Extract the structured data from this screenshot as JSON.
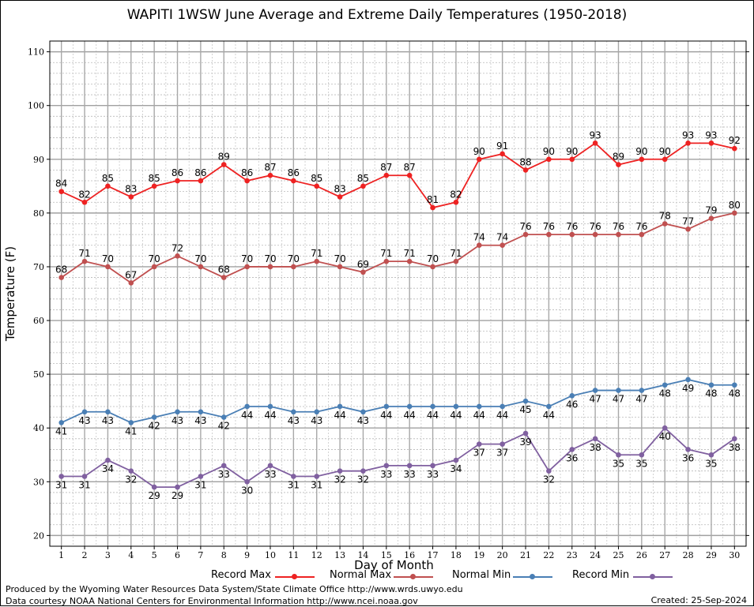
{
  "chart_data": {
    "type": "line",
    "title": "WAPITI 1WSW June Average and Extreme Daily Temperatures (1950-2018)",
    "xlabel": "Day of Month",
    "ylabel": "Temperature (F)",
    "x": [
      1,
      2,
      3,
      4,
      5,
      6,
      7,
      8,
      9,
      10,
      11,
      12,
      13,
      14,
      15,
      16,
      17,
      18,
      19,
      20,
      21,
      22,
      23,
      24,
      25,
      26,
      27,
      28,
      29,
      30
    ],
    "xlim": [
      0.5,
      30.5
    ],
    "ylim": [
      18,
      112
    ],
    "yticks": [
      20,
      30,
      40,
      50,
      60,
      70,
      80,
      90,
      100,
      110
    ],
    "grid": true,
    "legend_position": "bottom",
    "series": [
      {
        "name": "Record Max",
        "color": "#ee2222",
        "values": [
          84,
          82,
          85,
          83,
          85,
          86,
          86,
          89,
          86,
          87,
          86,
          85,
          83,
          85,
          87,
          87,
          81,
          82,
          90,
          91,
          88,
          90,
          90,
          93,
          89,
          90,
          90,
          93,
          93,
          92
        ]
      },
      {
        "name": "Normal Max",
        "color": "#c05050",
        "values": [
          68,
          71,
          70,
          67,
          70,
          72,
          70,
          68,
          70,
          70,
          70,
          71,
          70,
          69,
          71,
          71,
          70,
          71,
          74,
          74,
          76,
          76,
          76,
          76,
          76,
          76,
          78,
          77,
          79,
          80
        ]
      },
      {
        "name": "Normal Min",
        "color": "#4a7fb5",
        "values": [
          41,
          43,
          43,
          41,
          42,
          43,
          43,
          42,
          44,
          44,
          43,
          43,
          44,
          43,
          44,
          44,
          44,
          44,
          44,
          44,
          45,
          44,
          46,
          47,
          47,
          47,
          48,
          49,
          48,
          48
        ]
      },
      {
        "name": "Record Min",
        "color": "#8060a0",
        "values": [
          31,
          31,
          34,
          32,
          29,
          29,
          31,
          33,
          30,
          33,
          31,
          31,
          32,
          32,
          33,
          33,
          33,
          34,
          37,
          37,
          39,
          32,
          36,
          38,
          35,
          35,
          40,
          36,
          35,
          38
        ]
      }
    ]
  },
  "footer": {
    "line1": "Produced by the Wyoming Water Resources Data System/State Climate Office http://www.wrds.uwyo.edu",
    "line2": "Data courtesy NOAA National Centers for Environmental Information http://www.ncei.noaa.gov",
    "created": "Created: 25-Sep-2024"
  }
}
